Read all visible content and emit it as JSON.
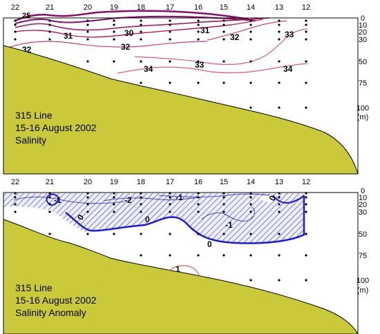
{
  "stations": [
    "22",
    "21",
    "20",
    "19",
    "18",
    "17",
    "16",
    "15",
    "14",
    "13",
    "12"
  ],
  "depth_ticks": [
    "0",
    "10",
    "20",
    "30",
    "50",
    "75",
    "100"
  ],
  "depth_unit": "(m)",
  "colors": {
    "terrain": "#c9c93a",
    "hatch": "#3b3bcc",
    "hatch_bg": "#eef0ff",
    "zero_contour": "#1a1ae0",
    "neg_contour": "#4a4acc",
    "sal_low": "#8b0a6a",
    "sal_mid": "#c2185b",
    "sal_high": "#e05a7a"
  },
  "chart_data": [
    {
      "type": "contour",
      "panel_text": [
        "315 Line",
        "15-16 August 2002",
        "Salinity"
      ],
      "x_categories": [
        "22",
        "21",
        "20",
        "19",
        "18",
        "17",
        "16",
        "15",
        "14",
        "13",
        "12"
      ],
      "y_ticks": [
        0,
        10,
        20,
        30,
        50,
        75,
        100
      ],
      "ylabel": "(m)",
      "contour_labels": [
        "25",
        "31",
        "30",
        "31",
        "32",
        "32",
        "33",
        "32",
        "34",
        "33",
        "34"
      ]
    },
    {
      "type": "contour",
      "panel_text": [
        "315 Line",
        "15-16 August 2002",
        "Salinity Anomaly"
      ],
      "x_categories": [
        "22",
        "21",
        "20",
        "19",
        "18",
        "17",
        "16",
        "15",
        "14",
        "13",
        "12"
      ],
      "y_ticks": [
        0,
        10,
        20,
        30,
        50,
        75,
        100
      ],
      "ylabel": "(m)",
      "contour_labels": [
        "-1",
        "-2",
        "-1",
        "0",
        "0",
        "0",
        "0",
        "-1",
        "1"
      ],
      "shading": "negative anomaly hatched"
    }
  ]
}
